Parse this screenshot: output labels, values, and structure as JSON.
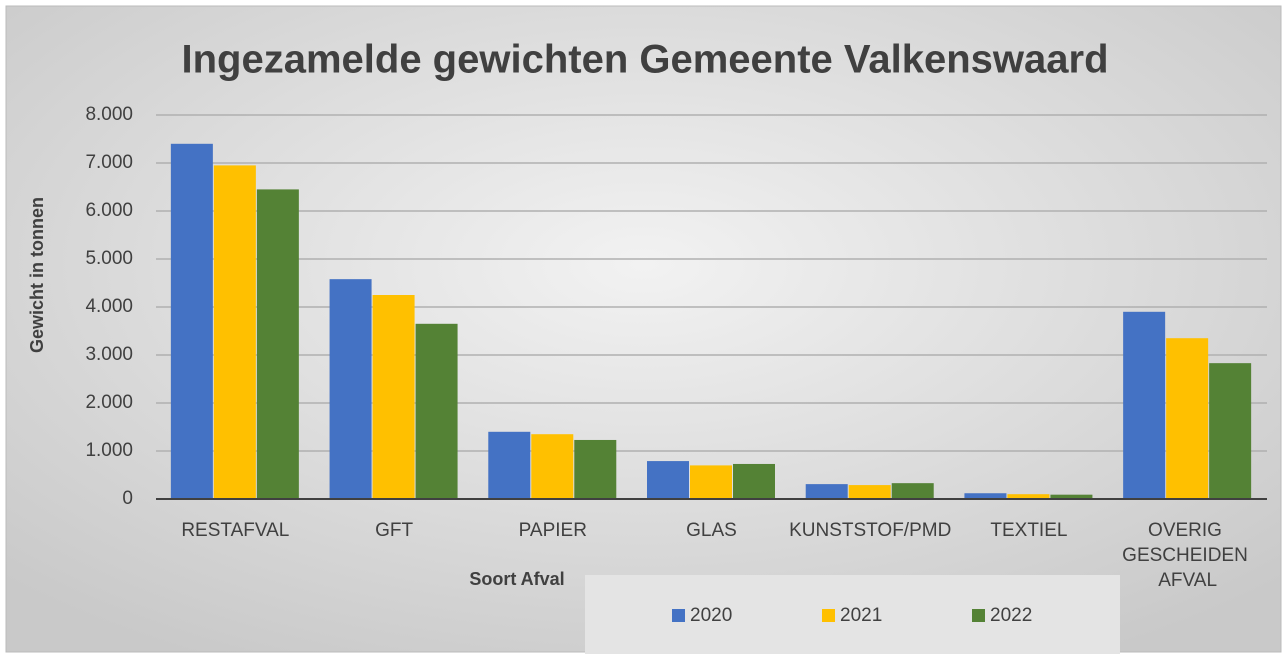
{
  "chart_data": {
    "type": "bar",
    "title": "Ingezamelde gewichten Gemeente Valkenswaard",
    "y_label": "Gewicht in tonnen",
    "x_label": "Soort Afval",
    "categories": [
      "RESTAFVAL",
      "GFT",
      "PAPIER",
      "GLAS",
      "KUNSTSTOF/PMD",
      "TEXTIEL",
      "OVERIG GESCHEIDEN AFVAL"
    ],
    "series": [
      {
        "name": "2020",
        "color": "#4472c4",
        "values": [
          7400,
          4580,
          1400,
          790,
          310,
          120,
          3900
        ]
      },
      {
        "name": "2021",
        "color": "#ffc000",
        "values": [
          6950,
          4250,
          1350,
          700,
          290,
          100,
          3350
        ]
      },
      {
        "name": "2022",
        "color": "#548235",
        "values": [
          6450,
          3650,
          1230,
          730,
          330,
          90,
          2830
        ]
      }
    ],
    "ylim": [
      0,
      8000
    ],
    "yticks": [
      0,
      {
        "value": 1000,
        "label": "1.000"
      },
      {
        "value": 2000,
        "label": "2.000"
      },
      {
        "value": 3000,
        "label": "3.000"
      },
      {
        "value": 4000,
        "label": "4.000"
      },
      {
        "value": 5000,
        "label": "5.000"
      },
      {
        "value": 6000,
        "label": "6.000"
      },
      {
        "value": 7000,
        "label": "7.000"
      },
      {
        "value": 8000,
        "label": "8.000"
      }
    ],
    "grid": true,
    "legend": "bottom"
  }
}
